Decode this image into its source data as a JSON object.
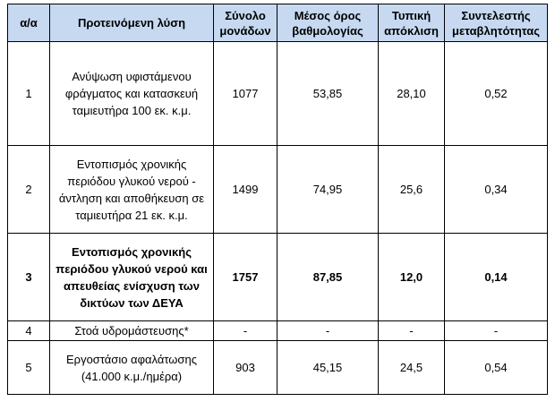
{
  "table": {
    "headers": {
      "index": "α/α",
      "solution": "Προτεινόμενη λύση",
      "total_units": "Σύνολο μονάδων",
      "mean_score": "Μέσος όρος βαθμολογίας",
      "std_dev": "Τυπική απόκλιση",
      "cv": "Συντελεστής μεταβλητότητας"
    },
    "rows": [
      {
        "index": "1",
        "solution": "Ανύψωση υφιστάμενου φράγματος και κατασκευή ταμιευτήρα 100 εκ. κ.μ.",
        "total_units": "1077",
        "mean_score": "53,85",
        "std_dev": "28,10",
        "cv": "0,52"
      },
      {
        "index": "2",
        "solution": "Εντοπισμός χρονικής περιόδου γλυκού νερού - άντληση και αποθήκευση σε ταμιευτήρα 21 εκ. κ.μ.",
        "total_units": "1499",
        "mean_score": "74,95",
        "std_dev": "25,6",
        "cv": "0,34"
      },
      {
        "index": "3",
        "solution": "Εντοπισμός χρονικής περιόδου γλυκού νερού και απευθείας ενίσχυση των δικτύων των ΔΕΥΑ",
        "total_units": "1757",
        "mean_score": "87,85",
        "std_dev": "12,0",
        "cv": "0,14"
      },
      {
        "index": "4",
        "solution": "Στοά υδρομάστευσης*",
        "total_units": "-",
        "mean_score": "-",
        "std_dev": "-",
        "cv": "-"
      },
      {
        "index": "5",
        "solution": "Εργοστάσιο αφαλάτωσης (41.000 κ.μ./ημέρα)",
        "total_units": "903",
        "mean_score": "45,15",
        "std_dev": "24,5",
        "cv": "0,54"
      }
    ]
  }
}
